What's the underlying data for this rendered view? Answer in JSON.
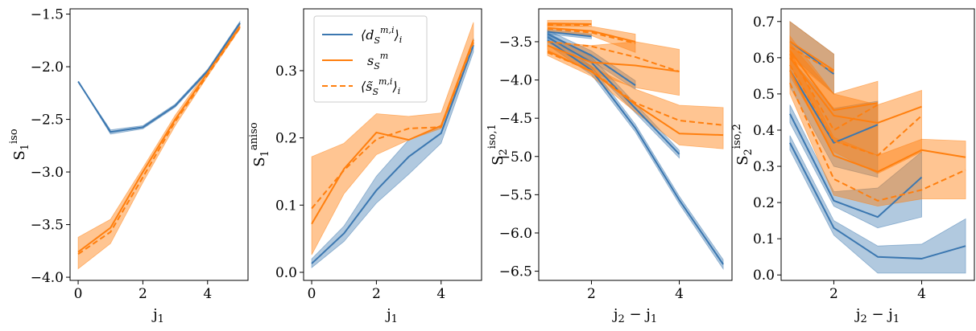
{
  "colors": {
    "blue": "#3b77b0",
    "orange": "#ff7f0e",
    "blue_fill": "#3b77b0",
    "orange_fill": "#ff7f0e"
  },
  "legend": {
    "entries": [
      {
        "label": "⟨d_S^{m,i}⟩_i",
        "style": "blue-solid"
      },
      {
        "label": "s_S^m",
        "style": "orange-solid"
      },
      {
        "label": "⟨s̃_S^{m,i}⟩_i",
        "style": "orange-dashed"
      }
    ]
  },
  "chart_data": [
    {
      "type": "line",
      "ylabel": "S_1^iso",
      "xlabel": "j1",
      "xlim": [
        -0.25,
        5.25
      ],
      "ylim": [
        -4.03,
        -1.45
      ],
      "xticks": [
        0,
        2,
        4
      ],
      "yticks": [
        -4.0,
        -3.5,
        -3.0,
        -2.5,
        -2.0,
        -1.5
      ],
      "ytick_labels": [
        "−4.0",
        "−3.5",
        "−3.0",
        "−2.5",
        "−2.0",
        "−1.5"
      ],
      "series": [
        {
          "name": "blue",
          "style": "blue-solid",
          "lines": [
            {
              "x": [
                0,
                1,
                2,
                3,
                4,
                5
              ],
              "y": [
                -2.14,
                -2.62,
                -2.575,
                -2.37,
                -2.04,
                -1.585
              ],
              "lo": [
                -2.14,
                -2.64,
                -2.59,
                -2.385,
                -2.055,
                -1.6
              ],
              "hi": [
                -2.14,
                -2.6,
                -2.56,
                -2.355,
                -2.025,
                -1.57
              ]
            }
          ]
        },
        {
          "name": "orange-solid",
          "style": "orange-solid",
          "lines": [
            {
              "x": [
                0,
                1,
                2,
                3,
                4,
                5
              ],
              "y": [
                -3.76,
                -3.53,
                -3.0,
                -2.5,
                -2.06,
                -1.62
              ],
              "lo": [
                -3.92,
                -3.68,
                -3.1,
                -2.56,
                -2.09,
                -1.64
              ],
              "hi": [
                -3.62,
                -3.45,
                -2.96,
                -2.46,
                -2.03,
                -1.6
              ]
            }
          ]
        },
        {
          "name": "orange-dashed",
          "style": "orange-dashed",
          "lines": [
            {
              "x": [
                0,
                1,
                2,
                3,
                4,
                5
              ],
              "y": [
                -3.78,
                -3.57,
                -3.05,
                -2.52,
                -2.08,
                -1.63
              ]
            }
          ]
        }
      ]
    },
    {
      "type": "line",
      "ylabel": "S_1^aniso",
      "xlabel": "j1",
      "xlim": [
        -0.25,
        5.25
      ],
      "ylim": [
        -0.012,
        0.392
      ],
      "xticks": [
        0,
        2,
        4
      ],
      "yticks": [
        0.0,
        0.1,
        0.2,
        0.3
      ],
      "ytick_labels": [
        "0.0",
        "0.1",
        "0.2",
        "0.3"
      ],
      "series": [
        {
          "name": "blue",
          "style": "blue-solid",
          "lines": [
            {
              "x": [
                0,
                1,
                2,
                3,
                4,
                5
              ],
              "y": [
                0.013,
                0.058,
                0.122,
                0.172,
                0.207,
                0.338
              ],
              "lo": [
                0.007,
                0.046,
                0.103,
                0.146,
                0.192,
                0.328
              ],
              "hi": [
                0.02,
                0.069,
                0.143,
                0.197,
                0.219,
                0.348
              ]
            }
          ]
        },
        {
          "name": "orange-solid",
          "style": "orange-solid",
          "lines": [
            {
              "x": [
                0,
                1,
                2,
                3,
                4,
                5
              ],
              "y": [
                0.072,
                0.154,
                0.208,
                0.197,
                0.218,
                0.346
              ],
              "lo": [
                0.026,
                0.117,
                0.175,
                0.197,
                0.214,
                0.337
              ],
              "hi": [
                0.172,
                0.192,
                0.236,
                0.232,
                0.237,
                0.372
              ]
            }
          ]
        },
        {
          "name": "orange-dashed",
          "style": "orange-dashed",
          "lines": [
            {
              "x": [
                0,
                1,
                2,
                3,
                4,
                5
              ],
              "y": [
                0.095,
                0.152,
                0.198,
                0.214,
                0.216,
                0.342
              ]
            }
          ]
        }
      ]
    },
    {
      "type": "line",
      "ylabel": "S_2^iso,1",
      "xlabel": "j2 − j1",
      "xlim": [
        0.8,
        5.2
      ],
      "ylim": [
        -6.62,
        -3.07
      ],
      "xticks": [
        2,
        4
      ],
      "yticks": [
        -6.5,
        -6.0,
        -5.5,
        -5.0,
        -4.5,
        -4.0,
        -3.5
      ],
      "ytick_labels": [
        "−6.5",
        "−6.0",
        "−5.5",
        "−5.0",
        "−4.5",
        "−4.0",
        "−3.5"
      ],
      "series": [
        {
          "name": "blue",
          "style": "blue-solid",
          "lines": [
            {
              "x": [
                1,
                2
              ],
              "y": [
                -3.37,
                -3.43
              ],
              "lo": [
                -3.4,
                -3.46
              ],
              "hi": [
                -3.34,
                -3.4
              ]
            },
            {
              "x": [
                1,
                2,
                3
              ],
              "y": [
                -3.4,
                -3.68,
                -4.07
              ],
              "lo": [
                -3.45,
                -3.75,
                -4.12
              ],
              "hi": [
                -3.35,
                -3.62,
                -4.01
              ]
            },
            {
              "x": [
                1,
                2,
                3,
                4
              ],
              "y": [
                -3.44,
                -3.77,
                -4.37,
                -4.97
              ],
              "lo": [
                -3.5,
                -3.84,
                -4.43,
                -5.02
              ],
              "hi": [
                -3.38,
                -3.7,
                -4.31,
                -4.92
              ]
            },
            {
              "x": [
                1,
                2,
                3,
                4,
                5
              ],
              "y": [
                -3.48,
                -3.87,
                -4.63,
                -5.57,
                -6.41
              ],
              "lo": [
                -3.54,
                -3.93,
                -4.68,
                -5.62,
                -6.47
              ],
              "hi": [
                -3.42,
                -3.82,
                -4.58,
                -5.52,
                -6.35
              ]
            }
          ]
        },
        {
          "name": "orange-solid",
          "style": "orange-solid",
          "lines": [
            {
              "x": [
                1,
                2
              ],
              "y": [
                -3.26,
                -3.27
              ],
              "lo": [
                -3.3,
                -3.3
              ],
              "hi": [
                -3.22,
                -3.22
              ]
            },
            {
              "x": [
                1,
                2,
                3
              ],
              "y": [
                -3.32,
                -3.36,
                -3.5
              ],
              "lo": [
                -3.36,
                -3.42,
                -3.64
              ],
              "hi": [
                -3.27,
                -3.3,
                -3.4
              ]
            },
            {
              "x": [
                1,
                2,
                3,
                4
              ],
              "y": [
                -3.55,
                -3.77,
                -3.81,
                -3.89
              ],
              "lo": [
                -3.6,
                -3.9,
                -4.1,
                -4.2
              ],
              "hi": [
                -3.5,
                -3.55,
                -3.5,
                -3.6
              ]
            },
            {
              "x": [
                1,
                2,
                3,
                4,
                5
              ],
              "y": [
                -3.62,
                -3.89,
                -4.32,
                -4.7,
                -4.72
              ],
              "lo": [
                -3.68,
                -3.95,
                -4.42,
                -4.85,
                -4.9
              ],
              "hi": [
                -3.55,
                -3.82,
                -4.12,
                -4.33,
                -4.36
              ]
            }
          ]
        },
        {
          "name": "orange-dashed",
          "style": "orange-dashed",
          "lines": [
            {
              "x": [
                1,
                2
              ],
              "y": [
                -3.28,
                -3.28
              ]
            },
            {
              "x": [
                1,
                2,
                3
              ],
              "y": [
                -3.33,
                -3.38,
                -3.52
              ]
            },
            {
              "x": [
                1,
                2,
                3,
                4
              ],
              "y": [
                -3.5,
                -3.56,
                -3.7,
                -3.89
              ]
            },
            {
              "x": [
                1,
                2,
                3,
                4,
                5
              ],
              "y": [
                -3.64,
                -3.88,
                -4.3,
                -4.53,
                -4.59
              ]
            }
          ]
        }
      ]
    },
    {
      "type": "line",
      "ylabel": "S_2^iso,2",
      "xlabel": "j2 − j1",
      "xlim": [
        0.8,
        5.2
      ],
      "ylim": [
        -0.015,
        0.735
      ],
      "xticks": [
        2,
        4
      ],
      "yticks": [
        0.0,
        0.1,
        0.2,
        0.3,
        0.4,
        0.5,
        0.6,
        0.7
      ],
      "ytick_labels": [
        "0.0",
        "0.1",
        "0.2",
        "0.3",
        "0.4",
        "0.5",
        "0.6",
        "0.7"
      ],
      "series": [
        {
          "name": "blue",
          "style": "blue-solid",
          "lines": [
            {
              "x": [
                1,
                2
              ],
              "y": [
                0.645,
                0.555
              ],
              "lo": [
                0.61,
                0.5
              ],
              "hi": [
                0.7,
                0.61
              ]
            },
            {
              "x": [
                1,
                2,
                3
              ],
              "y": [
                0.565,
                0.365,
                0.415
              ],
              "lo": [
                0.52,
                0.3,
                0.27
              ],
              "hi": [
                0.6,
                0.46,
                0.48
              ]
            },
            {
              "x": [
                1,
                2,
                3,
                4
              ],
              "y": [
                0.445,
                0.205,
                0.16,
                0.27
              ],
              "lo": [
                0.42,
                0.19,
                0.13,
                0.16
              ],
              "hi": [
                0.47,
                0.23,
                0.24,
                0.34
              ]
            },
            {
              "x": [
                1,
                2,
                3,
                4,
                5
              ],
              "y": [
                0.365,
                0.13,
                0.05,
                0.045,
                0.08
              ],
              "lo": [
                0.345,
                0.11,
                0.005,
                0.005,
                0.005
              ],
              "hi": [
                0.385,
                0.15,
                0.08,
                0.085,
                0.155
              ]
            }
          ]
        },
        {
          "name": "orange-solid",
          "style": "orange-solid",
          "lines": [
            {
              "x": [
                1,
                2
              ],
              "y": [
                0.645,
                0.565
              ],
              "lo": [
                0.6,
                0.5
              ],
              "hi": [
                0.7,
                0.61
              ]
            },
            {
              "x": [
                1,
                2,
                3
              ],
              "y": [
                0.62,
                0.455,
                0.475
              ],
              "lo": [
                0.58,
                0.37,
                0.33
              ],
              "hi": [
                0.66,
                0.5,
                0.535
              ]
            },
            {
              "x": [
                1,
                2,
                3,
                4
              ],
              "y": [
                0.6,
                0.44,
                0.42,
                0.465
              ],
              "lo": [
                0.55,
                0.34,
                0.28,
                0.34
              ],
              "hi": [
                0.64,
                0.5,
                0.47,
                0.51
              ]
            },
            {
              "x": [
                1,
                2,
                3,
                4,
                5
              ],
              "y": [
                0.565,
                0.33,
                0.285,
                0.345,
                0.325
              ],
              "lo": [
                0.5,
                0.22,
                0.19,
                0.21,
                0.21
              ],
              "hi": [
                0.62,
                0.38,
                0.33,
                0.375,
                0.37
              ]
            }
          ]
        },
        {
          "name": "orange-dashed",
          "style": "orange-dashed",
          "lines": [
            {
              "x": [
                1,
                2
              ],
              "y": [
                0.63,
                0.56
              ]
            },
            {
              "x": [
                1,
                2,
                3
              ],
              "y": [
                0.61,
                0.4,
                0.47
              ]
            },
            {
              "x": [
                1,
                2,
                3,
                4
              ],
              "y": [
                0.58,
                0.37,
                0.33,
                0.44
              ]
            },
            {
              "x": [
                1,
                2,
                3,
                4,
                5
              ],
              "y": [
                0.53,
                0.265,
                0.205,
                0.235,
                0.29
              ]
            }
          ]
        }
      ]
    }
  ]
}
